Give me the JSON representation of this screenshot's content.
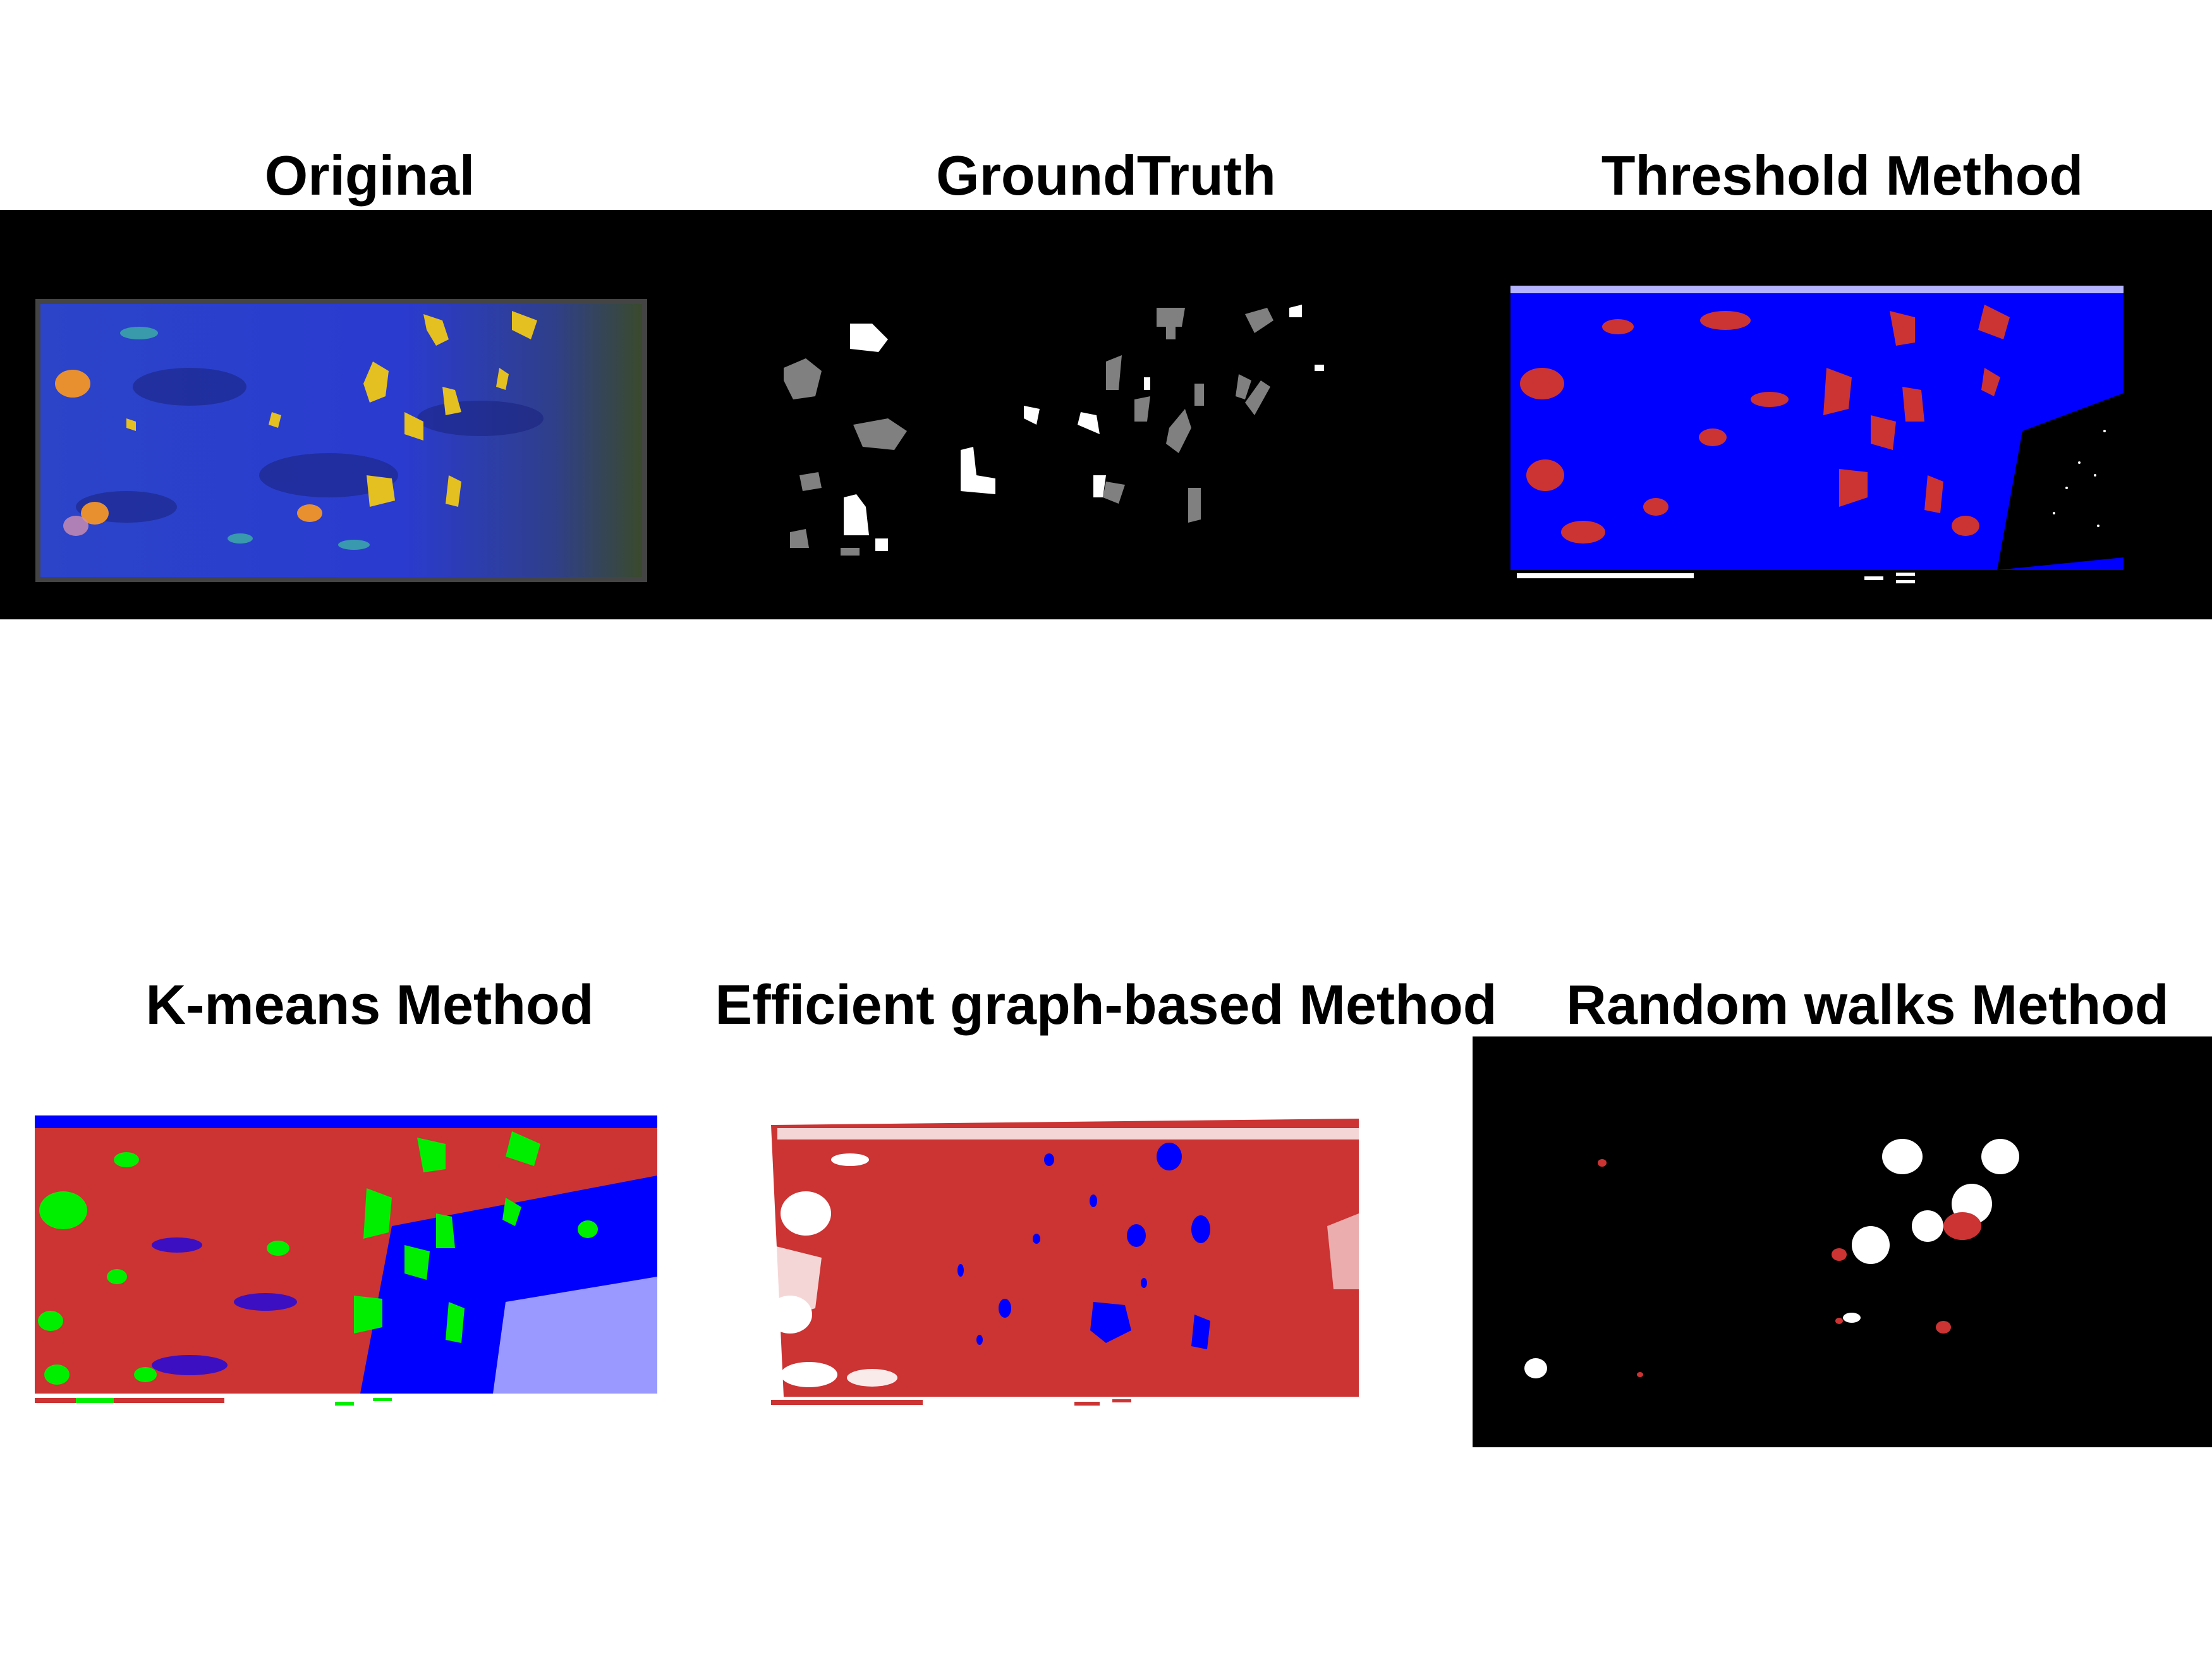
{
  "figure": {
    "panels": [
      {
        "title": "Original",
        "background": "#000000"
      },
      {
        "title": "GroundTruth",
        "background": "#000000"
      },
      {
        "title": "Threshold Method",
        "background": "#000000"
      },
      {
        "title": "K-means Method",
        "background": "#ffffff"
      },
      {
        "title": "Efficient graph-based Method",
        "background": "#ffffff"
      },
      {
        "title": "Random walks Method",
        "background": "#000000"
      }
    ]
  },
  "colors": {
    "segment_red": "#cc3333",
    "segment_blue": "#0000ff",
    "segment_green": "#00ee00",
    "truth_gray": "#808080",
    "truth_white": "#ffffff",
    "tissue_blue": "#2a3fd0",
    "cell_yellow": "#e8c020"
  }
}
